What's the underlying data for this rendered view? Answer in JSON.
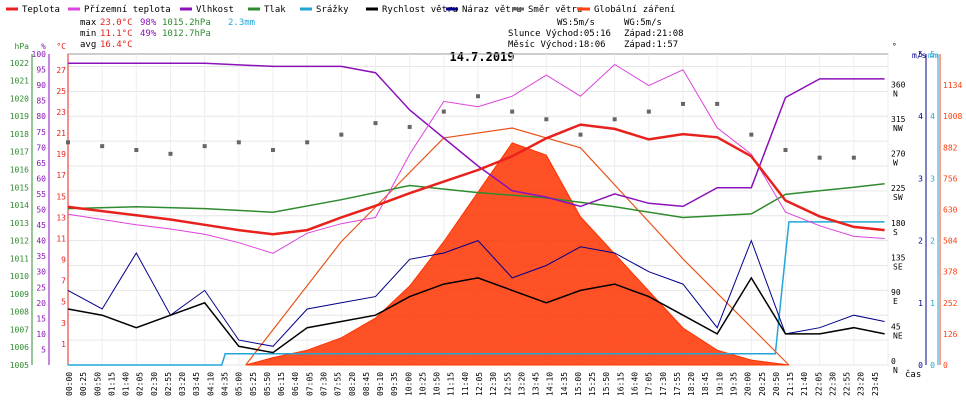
{
  "chart_data": {
    "type": "line",
    "title": "14.7.2019",
    "legend": [
      {
        "label": "Teplota",
        "color": "#e8211c"
      },
      {
        "label": "Přízemní teplota",
        "color": "#dd44dd"
      },
      {
        "label": "Vlhkost",
        "color": "#8b11b8"
      },
      {
        "label": "Tlak",
        "color": "#2e8b2e"
      },
      {
        "label": "Srážky",
        "color": "#22a6d8"
      },
      {
        "label": "Rychlost větru",
        "color": "#000000"
      },
      {
        "label": "Náraz větru",
        "color": "#00008b"
      },
      {
        "label": "Směr větru",
        "color": "#666666"
      },
      {
        "label": "Globální záření",
        "color": "#ff4010"
      }
    ],
    "stats": {
      "max_label": "max",
      "max_temp": "23.0°C",
      "max_hum": "98%",
      "max_press": "1015.2hPa",
      "rain_total": "2.3mm",
      "min_label": "min",
      "min_temp": "11.1°C",
      "min_hum": "49%",
      "min_press": "1012.7hPa",
      "avg_label": "avg",
      "avg_temp": "16.4°C"
    },
    "astro": {
      "ws": "WS:5m/s",
      "wg": "WG:5m/s",
      "sun": "Slunce Východ:05:16",
      "sun_set": "Západ:21:08",
      "moon": "Měsíc Východ:18:06",
      "moon_set": "Západ:1:57"
    },
    "axes": {
      "hpa": {
        "label": "hPa",
        "ticks": [
          "1005",
          "1006",
          "1007",
          "1008",
          "1009",
          "1010",
          "1011",
          "1012",
          "1013",
          "1014",
          "1015",
          "1016",
          "1017",
          "1018",
          "1019",
          "1020",
          "1021",
          "1022"
        ],
        "range": [
          1005,
          1022.5
        ]
      },
      "percent": {
        "label": "%",
        "ticks": [
          "5",
          "10",
          "15",
          "20",
          "25",
          "30",
          "35",
          "40",
          "45",
          "50",
          "55",
          "60",
          "65",
          "70",
          "75",
          "80",
          "85",
          "90",
          "95",
          "100"
        ],
        "range": [
          0,
          100
        ]
      },
      "celsius": {
        "label": "°C",
        "ticks": [
          "1",
          "3",
          "5",
          "7",
          "9",
          "11",
          "13",
          "15",
          "17",
          "19",
          "21",
          "23",
          "25",
          "27"
        ],
        "range": [
          -1,
          28.5
        ]
      },
      "direction": {
        "label": "°",
        "ticks": [
          {
            "v": "0",
            "d": "N"
          },
          {
            "v": "45",
            "d": "NE"
          },
          {
            "v": "90",
            "d": "E"
          },
          {
            "v": "135",
            "d": "SE"
          },
          {
            "v": "180",
            "d": "S"
          },
          {
            "v": "225",
            "d": "SW"
          },
          {
            "v": "270",
            "d": "W"
          },
          {
            "v": "315",
            "d": "NW"
          },
          {
            "v": "360",
            "d": "N"
          }
        ],
        "range": [
          0,
          405
        ]
      },
      "wind": {
        "label": "m/s",
        "ticks": [
          "0",
          "1",
          "2",
          "3",
          "4",
          "5"
        ],
        "range": [
          0,
          5
        ]
      },
      "rain": {
        "label": "mm",
        "ticks": [
          "0",
          "1",
          "2",
          "3",
          "4",
          "5"
        ],
        "range": [
          0,
          5
        ]
      },
      "radiation": {
        "label": "",
        "ticks": [
          "0",
          "126",
          "252",
          "378",
          "504",
          "630",
          "756",
          "882",
          "1008",
          "1134"
        ],
        "range": [
          0,
          1260
        ]
      },
      "x_unit": "čas"
    },
    "time_labels": [
      "00:00",
      "00:25",
      "00:50",
      "01:15",
      "01:40",
      "02:05",
      "02:30",
      "02:55",
      "03:20",
      "03:45",
      "04:10",
      "04:35",
      "05:00",
      "05:25",
      "05:50",
      "06:15",
      "06:40",
      "07:05",
      "07:30",
      "07:55",
      "08:20",
      "08:45",
      "09:10",
      "09:35",
      "10:00",
      "10:25",
      "10:50",
      "11:15",
      "11:40",
      "12:05",
      "12:30",
      "12:55",
      "13:20",
      "13:45",
      "14:10",
      "14:35",
      "15:00",
      "15:25",
      "15:50",
      "16:15",
      "16:40",
      "17:05",
      "17:30",
      "17:55",
      "18:20",
      "18:45",
      "19:10",
      "19:35",
      "20:00",
      "20:25",
      "20:50",
      "21:15",
      "21:40",
      "22:05",
      "22:30",
      "22:55",
      "23:20",
      "23:45"
    ],
    "series": {
      "temperature": {
        "name": "Teplota",
        "x": [
          0,
          1,
          2,
          3,
          4,
          5,
          6,
          7,
          8,
          9,
          10,
          11,
          12,
          13,
          14,
          15,
          16,
          17,
          18,
          19,
          20,
          21,
          22,
          23,
          23.9
        ],
        "y": [
          14.0,
          13.6,
          13.2,
          12.8,
          12.3,
          11.8,
          11.4,
          11.8,
          13.0,
          14.1,
          15.3,
          16.4,
          17.5,
          18.8,
          20.5,
          21.8,
          21.4,
          20.4,
          20.9,
          20.6,
          18.8,
          14.6,
          13.1,
          12.1,
          11.8
        ]
      },
      "ground_temperature": {
        "name": "Přízemní teplota",
        "x": [
          0,
          1,
          2,
          3,
          4,
          5,
          6,
          7,
          8,
          9,
          10,
          11,
          12,
          13,
          14,
          15,
          16,
          17,
          18,
          19,
          20,
          21,
          22,
          23,
          23.9
        ],
        "y": [
          13.3,
          12.8,
          12.3,
          11.9,
          11.4,
          10.6,
          9.6,
          11.5,
          12.4,
          13.0,
          19.0,
          24.0,
          23.5,
          24.5,
          26.5,
          24.5,
          27.5,
          25.5,
          27.0,
          21.5,
          19.0,
          13.5,
          12.2,
          11.2,
          11.0
        ]
      },
      "humidity": {
        "name": "Vlhkost",
        "x": [
          0,
          2,
          4,
          6,
          7,
          8,
          9,
          10,
          11,
          12,
          13,
          14,
          15,
          16,
          17,
          18,
          19,
          20,
          21,
          22,
          23,
          23.9
        ],
        "y": [
          97,
          97,
          97,
          96,
          96,
          96,
          94,
          82,
          73,
          64,
          56,
          54,
          51,
          55,
          52,
          51,
          57,
          57,
          86,
          92,
          92,
          92
        ]
      },
      "pressure": {
        "name": "Tlak",
        "x": [
          0,
          2,
          4,
          6,
          8,
          10,
          12,
          14,
          16,
          18,
          20,
          21,
          22,
          23,
          23.9
        ],
        "y": [
          1013.8,
          1013.9,
          1013.8,
          1013.6,
          1014.3,
          1015.1,
          1014.7,
          1014.4,
          1013.9,
          1013.3,
          1013.5,
          1014.6,
          1014.8,
          1015.0,
          1015.2
        ]
      },
      "rain": {
        "name": "Srážky",
        "x": [
          0,
          4.5,
          4.6,
          20.7,
          21.1,
          23.9
        ],
        "y": [
          0,
          0,
          0.18,
          0.18,
          2.3,
          2.3
        ]
      },
      "wind_speed": {
        "name": "Rychlost větru",
        "x": [
          0,
          1,
          2,
          3,
          4,
          5,
          6,
          7,
          8,
          9,
          10,
          11,
          12,
          13,
          14,
          15,
          16,
          17,
          18,
          19,
          20,
          21,
          22,
          23,
          23.9
        ],
        "y": [
          0.9,
          0.8,
          0.6,
          0.8,
          1.0,
          0.3,
          0.2,
          0.6,
          0.7,
          0.8,
          1.1,
          1.3,
          1.4,
          1.2,
          1.0,
          1.2,
          1.3,
          1.1,
          0.8,
          0.5,
          1.4,
          0.5,
          0.5,
          0.6,
          0.5
        ]
      },
      "wind_gust": {
        "name": "Náraz větru",
        "x": [
          0,
          1,
          2,
          3,
          4,
          5,
          6,
          7,
          8,
          9,
          10,
          11,
          12,
          13,
          14,
          15,
          16,
          17,
          18,
          19,
          20,
          21,
          22,
          23,
          23.9
        ],
        "y": [
          1.2,
          0.9,
          1.8,
          0.8,
          1.2,
          0.4,
          0.3,
          0.9,
          1.0,
          1.1,
          1.7,
          1.8,
          2.0,
          1.4,
          1.6,
          1.9,
          1.8,
          1.5,
          1.3,
          0.6,
          2.0,
          0.5,
          0.6,
          0.8,
          0.7
        ]
      },
      "wind_direction": {
        "name": "Směr větru",
        "x": [
          0,
          1,
          2,
          3,
          4,
          5,
          6,
          7,
          8,
          9,
          10,
          11,
          12,
          13,
          14,
          15,
          16,
          17,
          18,
          19,
          20,
          21,
          22,
          23
        ],
        "y": [
          290,
          285,
          280,
          275,
          285,
          290,
          280,
          290,
          300,
          315,
          310,
          330,
          350,
          330,
          320,
          300,
          320,
          330,
          340,
          340,
          300,
          280,
          270,
          270
        ]
      },
      "global_radiation": {
        "name": "Globální záření",
        "x": [
          5.2,
          6,
          7,
          8,
          9,
          10,
          11,
          12,
          13,
          14,
          15,
          16,
          17,
          18,
          19,
          20,
          21.1
        ],
        "y": [
          0,
          30,
          60,
          110,
          190,
          320,
          500,
          700,
          900,
          850,
          600,
          450,
          300,
          150,
          60,
          20,
          0
        ]
      },
      "radiation_theoretical": {
        "name": "",
        "x": [
          5.2,
          8,
          11,
          13,
          15,
          18,
          21.1
        ],
        "y": [
          0,
          500,
          920,
          960,
          880,
          430,
          0
        ]
      }
    }
  }
}
